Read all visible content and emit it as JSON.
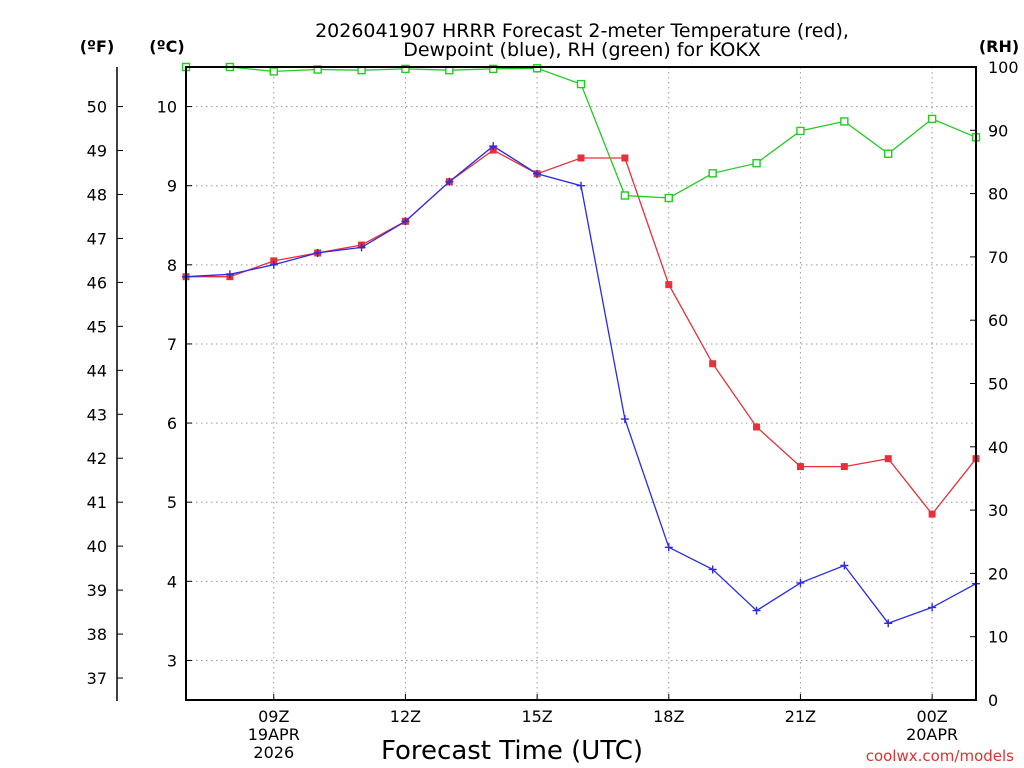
{
  "chart_data": {
    "type": "line",
    "title_line1": "2026041907 HRRR Forecast 2-meter Temperature (red),",
    "title_line2": "Dewpoint (blue), RH (green) for KOKX",
    "xlabel": "Forecast Time (UTC)",
    "units": {
      "fahrenheit": "(ºF)",
      "celsius": "(ºC)",
      "rh": "(RH)"
    },
    "x_hours": [
      7,
      8,
      9,
      10,
      11,
      12,
      13,
      14,
      15,
      16,
      17,
      18,
      19,
      20,
      21,
      22,
      23,
      24,
      25
    ],
    "xlim": [
      7,
      25
    ],
    "x_ticks": [
      {
        "hour": 9,
        "label": "09Z",
        "date": "19APR",
        "year": "2026"
      },
      {
        "hour": 12,
        "label": "12Z"
      },
      {
        "hour": 15,
        "label": "15Z"
      },
      {
        "hour": 18,
        "label": "18Z"
      },
      {
        "hour": 21,
        "label": "21Z"
      },
      {
        "hour": 24,
        "label": "00Z",
        "date": "20APR"
      }
    ],
    "celsius_axis": {
      "ylim": [
        2.5,
        10.5
      ],
      "ticks": [
        3,
        4,
        5,
        6,
        7,
        8,
        9,
        10
      ]
    },
    "fahrenheit_ticks": [
      37,
      38,
      39,
      40,
      41,
      42,
      43,
      44,
      45,
      46,
      47,
      48,
      49,
      50
    ],
    "rh_axis": {
      "ylim": [
        0,
        100
      ],
      "ticks": [
        0,
        10,
        20,
        30,
        40,
        50,
        60,
        70,
        80,
        90,
        100
      ]
    },
    "series": [
      {
        "name": "Temperature",
        "axis": "celsius",
        "color": "#e8303a",
        "marker": "filled-square",
        "values": [
          7.85,
          7.85,
          8.05,
          8.15,
          8.25,
          8.55,
          9.05,
          9.45,
          9.15,
          9.35,
          9.35,
          7.75,
          6.75,
          5.95,
          5.45,
          5.45,
          5.55,
          4.85,
          5.55
        ]
      },
      {
        "name": "Dewpoint",
        "axis": "celsius",
        "color": "#2a2ae8",
        "marker": "plus",
        "values": [
          7.85,
          7.88,
          8.0,
          8.15,
          8.22,
          8.55,
          9.05,
          9.5,
          9.15,
          9.0,
          6.05,
          4.43,
          4.15,
          3.63,
          3.98,
          4.2,
          3.47,
          3.67,
          3.97
        ]
      },
      {
        "name": "RH",
        "axis": "rh",
        "color": "#22cc22",
        "marker": "open-square",
        "values": [
          100,
          100,
          99.3,
          99.6,
          99.5,
          99.7,
          99.5,
          99.7,
          99.8,
          97.3,
          79.7,
          79.3,
          83.2,
          84.8,
          89.9,
          91.4,
          86.3,
          91.8,
          88.9
        ]
      }
    ]
  },
  "credit": "coolwx.com/models"
}
